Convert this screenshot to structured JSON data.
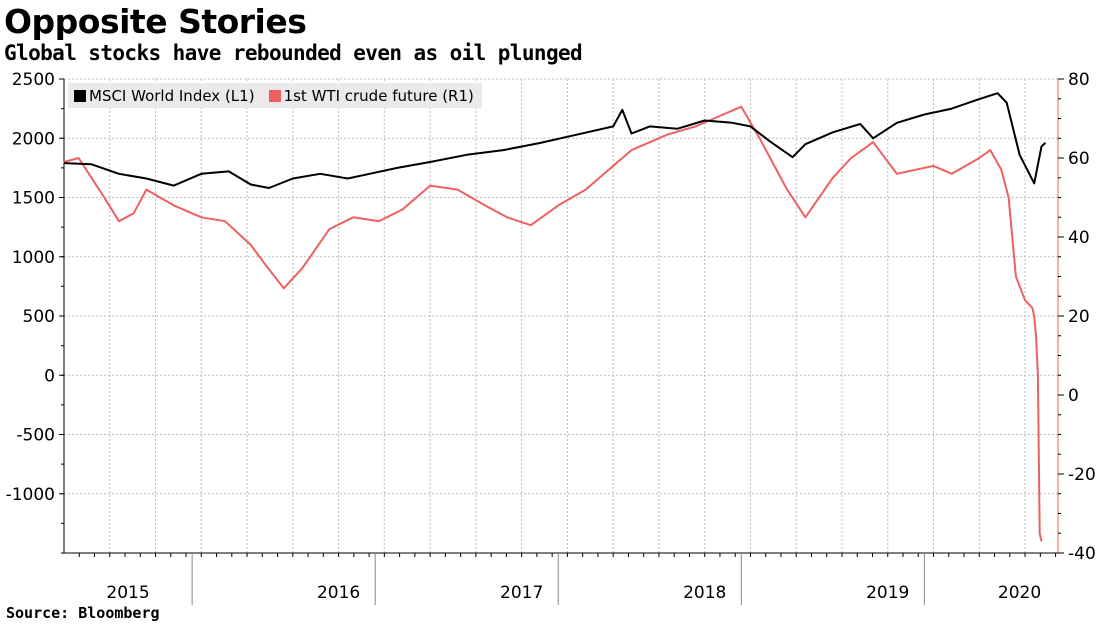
{
  "title": "Opposite Stories",
  "subtitle": "Global stocks have rebounded even as oil plunged",
  "source": "Source: Bloomberg",
  "colors": {
    "msci": "#000000",
    "wti": "#ee6060",
    "grid": "#bdbdbd",
    "axis": "#000000"
  },
  "chart_data": {
    "type": "line",
    "title": "Opposite Stories",
    "subtitle": "Global stocks have rebounded even as oil plunged",
    "x_axis": {
      "range": [
        2015.0,
        2020.43
      ],
      "tick_labels": [
        "2015",
        "2016",
        "2017",
        "2018",
        "2019",
        "2020"
      ],
      "tick_label_positions": [
        2015.35,
        2016.5,
        2017.5,
        2018.5,
        2019.5,
        2020.22
      ],
      "year_boundaries": [
        2015.7,
        2016.7,
        2017.7,
        2018.7,
        2019.7
      ]
    },
    "left_axis": {
      "label": "L1",
      "range": [
        -1500,
        2500
      ],
      "ticks": [
        2500,
        2000,
        1500,
        1000,
        500,
        0,
        -500,
        -1000
      ]
    },
    "right_axis": {
      "label": "R1",
      "range": [
        -40,
        80
      ],
      "ticks": [
        80,
        60,
        40,
        20,
        0,
        -20,
        -40
      ]
    },
    "legend": [
      "MSCI World Index  (L1)",
      "1st WTI crude future (R1)"
    ],
    "series": [
      {
        "name": "MSCI World Index  (L1)",
        "axis": "left",
        "x": [
          2015.0,
          2015.15,
          2015.3,
          2015.45,
          2015.6,
          2015.75,
          2015.9,
          2016.02,
          2016.12,
          2016.25,
          2016.4,
          2016.55,
          2016.67,
          2016.82,
          2017.0,
          2017.2,
          2017.4,
          2017.6,
          2017.8,
          2018.0,
          2018.05,
          2018.1,
          2018.2,
          2018.35,
          2018.5,
          2018.65,
          2018.75,
          2018.85,
          2018.98,
          2019.05,
          2019.2,
          2019.35,
          2019.42,
          2019.55,
          2019.7,
          2019.85,
          2020.0,
          2020.1,
          2020.15,
          2020.22,
          2020.3,
          2020.34,
          2020.36
        ],
        "values": [
          1790,
          1780,
          1700,
          1660,
          1600,
          1700,
          1720,
          1610,
          1580,
          1660,
          1700,
          1660,
          1700,
          1750,
          1800,
          1860,
          1900,
          1960,
          2030,
          2100,
          2240,
          2040,
          2100,
          2080,
          2150,
          2130,
          2100,
          1980,
          1840,
          1950,
          2050,
          2120,
          2000,
          2130,
          2200,
          2250,
          2330,
          2380,
          2300,
          1860,
          1620,
          1930,
          1960
        ]
      },
      {
        "name": "1st WTI crude future (R1)",
        "axis": "right",
        "x": [
          2015.0,
          2015.08,
          2015.15,
          2015.22,
          2015.3,
          2015.38,
          2015.45,
          2015.6,
          2015.75,
          2015.88,
          2016.02,
          2016.1,
          2016.2,
          2016.3,
          2016.45,
          2016.58,
          2016.72,
          2016.85,
          2017.0,
          2017.15,
          2017.3,
          2017.42,
          2017.55,
          2017.7,
          2017.85,
          2018.0,
          2018.1,
          2018.2,
          2018.3,
          2018.45,
          2018.55,
          2018.7,
          2018.8,
          2018.95,
          2019.05,
          2019.2,
          2019.3,
          2019.42,
          2019.55,
          2019.65,
          2019.75,
          2019.85,
          2020.0,
          2020.06,
          2020.12,
          2020.16,
          2020.2,
          2020.25,
          2020.29,
          2020.3,
          2020.31,
          2020.32,
          2020.33,
          2020.34
        ],
        "values": [
          59,
          60,
          55,
          50,
          44,
          46,
          52,
          48,
          45,
          44,
          38,
          33,
          27,
          32,
          42,
          45,
          44,
          47,
          53,
          52,
          48,
          45,
          43,
          48,
          52,
          58,
          62,
          64,
          66,
          68,
          70,
          73,
          65,
          52,
          45,
          55,
          60,
          64,
          56,
          57,
          58,
          56,
          60,
          62,
          57,
          50,
          30,
          24,
          22,
          20,
          15,
          5,
          -35,
          -37
        ]
      }
    ]
  }
}
